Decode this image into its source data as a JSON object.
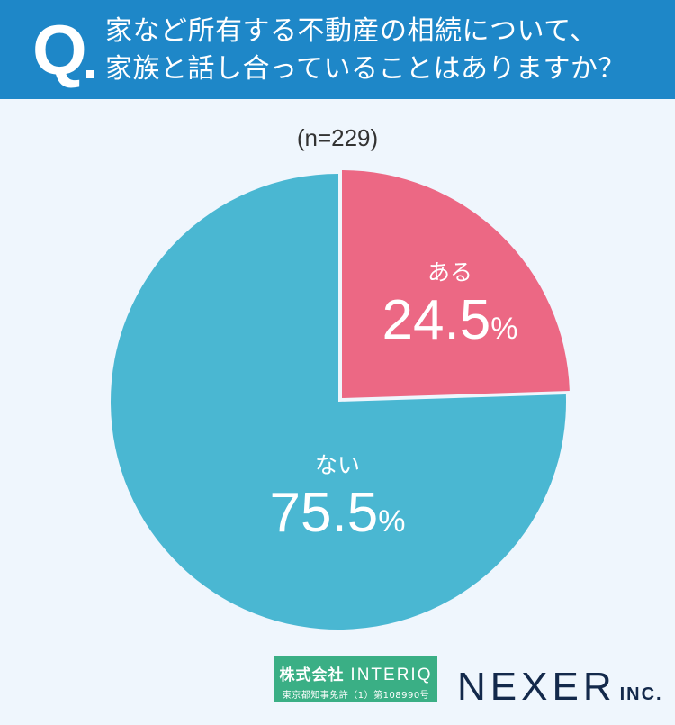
{
  "header": {
    "q_mark": "Q",
    "question_line1": "家など所有する不動産の相続について、",
    "question_line2": "家族と話し合っていることはありますか？"
  },
  "sample_size": "(n=229)",
  "chart_data": {
    "type": "pie",
    "title": "家など所有する不動産の相続について、家族と話し合っていることはありますか？",
    "n": 229,
    "categories": [
      "ある",
      "ない"
    ],
    "values": [
      24.5,
      75.5
    ],
    "unit": "%",
    "colors": [
      "#ec6884",
      "#4ab7d2"
    ],
    "start_angle_deg": 0,
    "direction": "clockwise",
    "legend": "none (labels inside slices)"
  },
  "labels": {
    "yes": {
      "category": "ある",
      "value": "24.5",
      "unit": "%"
    },
    "no": {
      "category": "ない",
      "value": "75.5",
      "unit": "%"
    }
  },
  "footer": {
    "interiq_line1_jp": "株式会社",
    "interiq_line1_en": "INTERIQ",
    "interiq_line2": "東京都知事免許（1）第108990号",
    "nexer_name": "NEXER",
    "nexer_suffix": "INC."
  },
  "colors": {
    "header_bg": "#1e87c8",
    "page_bg": "#eff6fd",
    "interiq_bg": "#3aaf85",
    "nexer_text": "#13294b"
  }
}
